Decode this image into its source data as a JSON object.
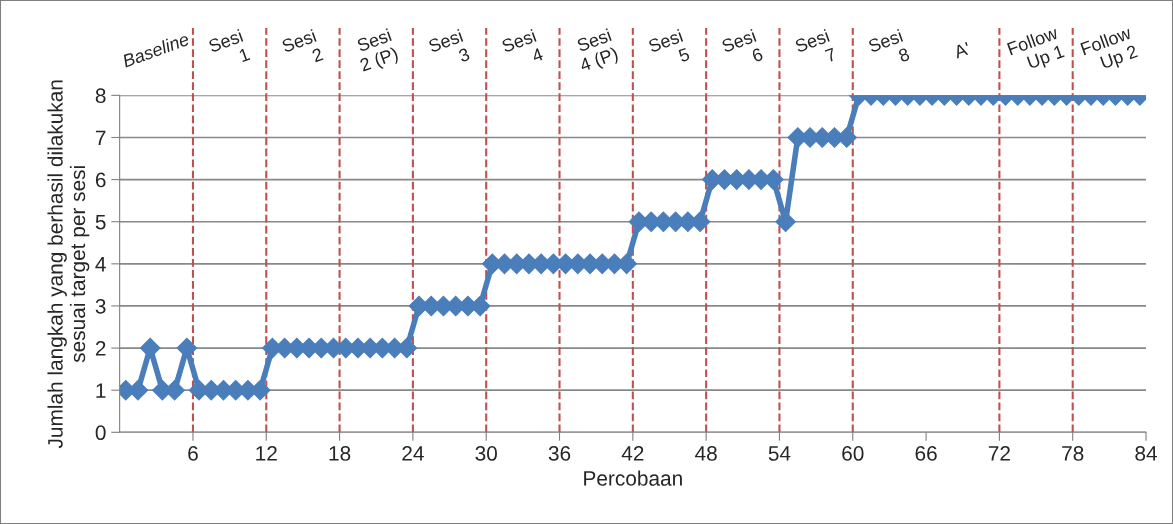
{
  "chart_data": {
    "type": "line",
    "xlabel": "Percobaan",
    "ylabel": "Jumlah langkah yang berhasil dilakukan\nsesuai target per sesi",
    "x": [
      0.5,
      1.5,
      2.5,
      3.5,
      4.5,
      5.5,
      6.5,
      7.5,
      8.5,
      9.5,
      10.5,
      11.5,
      12.5,
      13.5,
      14.5,
      15.5,
      16.5,
      17.5,
      18.5,
      19.5,
      20.5,
      21.5,
      22.5,
      23.5,
      24.5,
      25.5,
      26.5,
      27.5,
      28.5,
      29.5,
      30.5,
      31.5,
      32.5,
      33.5,
      34.5,
      35.5,
      36.5,
      37.5,
      38.5,
      39.5,
      40.5,
      41.5,
      42.5,
      43.5,
      44.5,
      45.5,
      46.5,
      47.5,
      48.5,
      49.5,
      50.5,
      51.5,
      52.5,
      53.5,
      54.5,
      55.5,
      56.5,
      57.5,
      58.5,
      59.5,
      60.5,
      61.5,
      62.5,
      63.5,
      64.5,
      65.5,
      66.5,
      67.5,
      68.5,
      69.5,
      70.5,
      71.5,
      72.5,
      73.5,
      74.5,
      75.5,
      76.5,
      77.5,
      78.5,
      79.5,
      80.5,
      81.5,
      82.5,
      83.5
    ],
    "series": [
      {
        "color": "#4a7ebb",
        "values": [
          1,
          1,
          2,
          1,
          1,
          2,
          1,
          1,
          1,
          1,
          1,
          1,
          2,
          2,
          2,
          2,
          2,
          2,
          2,
          2,
          2,
          2,
          2,
          2,
          3,
          3,
          3,
          3,
          3,
          3,
          4,
          4,
          4,
          4,
          4,
          4,
          4,
          4,
          4,
          4,
          4,
          4,
          5,
          5,
          5,
          5,
          5,
          5,
          6,
          6,
          6,
          6,
          6,
          6,
          5,
          7,
          7,
          7,
          7,
          7,
          8,
          8,
          8,
          8,
          8,
          8,
          8,
          8,
          8,
          8,
          8,
          8,
          8,
          8,
          8,
          8,
          8,
          8,
          8,
          8,
          8,
          8,
          8,
          8
        ]
      }
    ],
    "xlim": [
      0,
      84
    ],
    "xticks": [
      6,
      12,
      18,
      24,
      30,
      36,
      42,
      48,
      54,
      60,
      66,
      72,
      78,
      84
    ],
    "ylim": [
      0,
      8
    ],
    "yticks": [
      0,
      1,
      2,
      3,
      4,
      5,
      6,
      7,
      8
    ],
    "grid": "y",
    "marker": "diamond",
    "line_style": "solid",
    "legend": false,
    "ref_lines": [
      {
        "axis": "x",
        "value": 6,
        "color": "#c0504d",
        "line_style": "dashed"
      },
      {
        "axis": "x",
        "value": 12,
        "color": "#c0504d",
        "line_style": "dashed"
      },
      {
        "axis": "x",
        "value": 18,
        "color": "#c0504d",
        "line_style": "dashed"
      },
      {
        "axis": "x",
        "value": 24,
        "color": "#c0504d",
        "line_style": "dashed"
      },
      {
        "axis": "x",
        "value": 30,
        "color": "#c0504d",
        "line_style": "dashed"
      },
      {
        "axis": "x",
        "value": 36,
        "color": "#c0504d",
        "line_style": "dashed"
      },
      {
        "axis": "x",
        "value": 42,
        "color": "#c0504d",
        "line_style": "dashed"
      },
      {
        "axis": "x",
        "value": 48,
        "color": "#c0504d",
        "line_style": "dashed"
      },
      {
        "axis": "x",
        "value": 54,
        "color": "#c0504d",
        "line_style": "dashed"
      },
      {
        "axis": "x",
        "value": 60,
        "color": "#c0504d",
        "line_style": "dashed"
      },
      {
        "axis": "x",
        "value": 72,
        "color": "#c0504d",
        "line_style": "dashed"
      },
      {
        "axis": "x",
        "value": 78,
        "color": "#c0504d",
        "line_style": "dashed"
      }
    ],
    "annotations": [
      "Baseline",
      "Sesi\n1",
      "Sesi\n2",
      "Sesi\n2 (P)",
      "Sesi\n3",
      "Sesi\n4",
      "Sesi\n4 (P)",
      "Sesi\n5",
      "Sesi\n6",
      "Sesi\n7",
      "Sesi\n8",
      "A'",
      "Follow\nUp 1",
      "Follow\nUp 2"
    ]
  }
}
